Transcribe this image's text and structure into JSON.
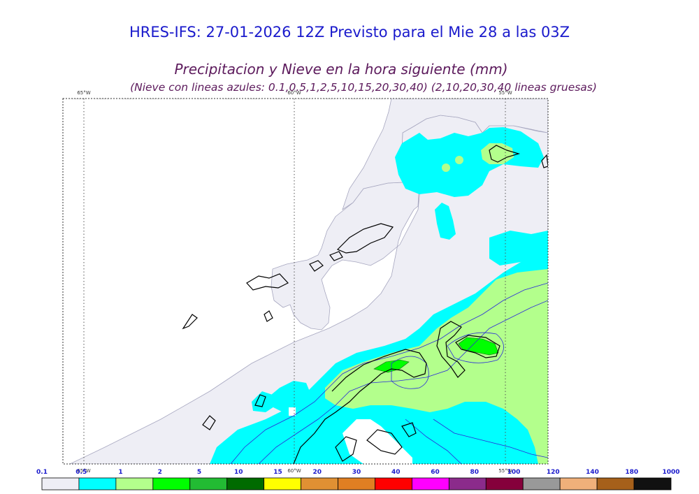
{
  "header": {
    "line1": "HRES-IFS: 27-01-2026 12Z Previsto para el Mie 28 a las 03Z",
    "line2": "Precipitacion y Nieve en la hora siguiente (mm)",
    "line3": "(Nieve con lineas azules: 0.1,0.5,1,2,5,10,15,20,30,40)  (2,10,20,30,40 lineas gruesas)"
  },
  "map": {
    "meridian_labels": [
      "65°W",
      "60°W",
      "55°W"
    ]
  },
  "colorbar": {
    "ticks": [
      "0.1",
      "0.5",
      "1",
      "2",
      "5",
      "10",
      "15",
      "20",
      "30",
      "40",
      "60",
      "80",
      "100",
      "120",
      "140",
      "180",
      "1000"
    ],
    "colors": [
      "#eeeef5",
      "#00ffff",
      "#b3ff8c",
      "#00ff00",
      "#22bb33",
      "#006b00",
      "#ffff00",
      "#e09033",
      "#e07f22",
      "#ff0000",
      "#ff00ff",
      "#8b2b8b",
      "#85003b",
      "#999999",
      "#f0b07a",
      "#a6601a",
      "#111111"
    ]
  }
}
